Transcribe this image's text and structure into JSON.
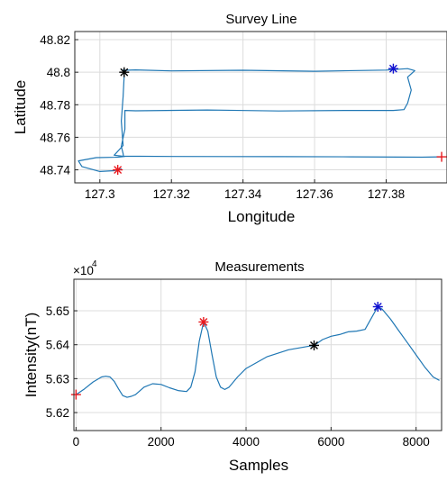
{
  "colors": {
    "line": "#1f77b4",
    "red": "#e8191e",
    "black": "#000000",
    "blue": "#1010d0",
    "axis": "#262626",
    "grid": "#dcdcdc"
  },
  "chart_data": [
    {
      "type": "line",
      "title": "Survey Line",
      "xlabel": "Longitude",
      "ylabel": "Latitude",
      "xlim": [
        127.293,
        127.397
      ],
      "ylim": [
        48.732,
        48.825
      ],
      "xticks": [
        127.3,
        127.32,
        127.34,
        127.36,
        127.38
      ],
      "xtick_labels": [
        "127.3",
        "127.32",
        "127.34",
        "127.36",
        "127.38"
      ],
      "yticks": [
        48.74,
        48.76,
        48.78,
        48.8,
        48.82
      ],
      "ytick_labels": [
        "48.74",
        "48.76",
        "48.78",
        "48.8",
        "48.82"
      ],
      "grid": true,
      "series": [
        {
          "x": [
            127.305,
            127.306,
            127.304,
            127.3,
            127.295,
            127.294,
            127.299,
            127.305,
            127.307,
            127.304,
            127.3065,
            127.306,
            127.3065,
            127.3068,
            127.3067,
            127.3066,
            127.307,
            127.31,
            127.32,
            127.34,
            127.36,
            127.38,
            127.386,
            127.388,
            127.386,
            127.387,
            127.386,
            127.385,
            127.382,
            127.37,
            127.35,
            127.33,
            127.31,
            127.307,
            127.307,
            127.306,
            127.3065,
            127.3066,
            127.32,
            127.35,
            127.37,
            127.39,
            127.3955
          ],
          "y": [
            48.74,
            48.7405,
            48.7395,
            48.739,
            48.742,
            48.7455,
            48.7475,
            48.7478,
            48.7482,
            48.749,
            48.755,
            48.77,
            48.785,
            48.798,
            48.8,
            48.8015,
            48.8012,
            48.8014,
            48.8008,
            48.8012,
            48.8006,
            48.8013,
            48.8022,
            48.801,
            48.797,
            48.789,
            48.781,
            48.777,
            48.7765,
            48.7765,
            48.7762,
            48.7768,
            48.7763,
            48.7765,
            48.765,
            48.7545,
            48.75,
            48.7484,
            48.7482,
            48.7481,
            48.748,
            48.7478,
            48.748
          ]
        }
      ],
      "markers": [
        {
          "symbol": "+",
          "color": "red",
          "x": 127.3955,
          "y": 48.748
        },
        {
          "symbol": "*",
          "color": "black",
          "x": 127.3068,
          "y": 48.8
        },
        {
          "symbol": "*",
          "color": "blue",
          "x": 127.382,
          "y": 48.8022
        },
        {
          "symbol": "*",
          "color": "red",
          "x": 127.305,
          "y": 48.74
        }
      ]
    },
    {
      "type": "line",
      "title": "Measurements",
      "xlabel": "Samples",
      "ylabel": "Intensity(nT)",
      "exponent_label": "×10",
      "exponent_power": "4",
      "xlim": [
        -50,
        8600
      ],
      "ylim": [
        5.6147,
        5.6593
      ],
      "xticks": [
        0,
        2000,
        4000,
        6000,
        8000
      ],
      "xtick_labels": [
        "0",
        "2000",
        "4000",
        "6000",
        "8000"
      ],
      "yticks": [
        5.62,
        5.63,
        5.64,
        5.65
      ],
      "ytick_labels": [
        "5.62",
        "5.63",
        "5.64",
        "5.65"
      ],
      "grid": true,
      "series": [
        {
          "x": [
            0,
            200,
            400,
            600,
            700,
            800,
            900,
            1000,
            1100,
            1200,
            1300,
            1400,
            1600,
            1800,
            2000,
            2200,
            2400,
            2600,
            2700,
            2800,
            2900,
            3000,
            3100,
            3200,
            3300,
            3400,
            3500,
            3600,
            3800,
            4000,
            4500,
            5000,
            5500,
            5600,
            5800,
            6000,
            6200,
            6400,
            6600,
            6800,
            7000,
            7100,
            7200,
            7400,
            7600,
            7800,
            8000,
            8200,
            8400,
            8550
          ],
          "y": [
            5.6253,
            5.627,
            5.629,
            5.6305,
            5.6307,
            5.6305,
            5.6292,
            5.627,
            5.625,
            5.6245,
            5.6248,
            5.6253,
            5.6275,
            5.6285,
            5.6283,
            5.6273,
            5.6265,
            5.6262,
            5.6275,
            5.632,
            5.641,
            5.6467,
            5.644,
            5.637,
            5.6305,
            5.6275,
            5.6268,
            5.6275,
            5.6305,
            5.633,
            5.6365,
            5.6385,
            5.6396,
            5.6398,
            5.6415,
            5.6425,
            5.643,
            5.6438,
            5.644,
            5.6445,
            5.649,
            5.6512,
            5.6505,
            5.6475,
            5.644,
            5.6405,
            5.637,
            5.6335,
            5.6305,
            5.6295
          ]
        }
      ],
      "markers": [
        {
          "symbol": "+",
          "color": "red",
          "x": 0,
          "y": 5.6253
        },
        {
          "symbol": "*",
          "color": "red",
          "x": 3000,
          "y": 5.6467
        },
        {
          "symbol": "*",
          "color": "black",
          "x": 5600,
          "y": 5.6398
        },
        {
          "symbol": "*",
          "color": "blue",
          "x": 7100,
          "y": 5.6512
        }
      ]
    }
  ]
}
